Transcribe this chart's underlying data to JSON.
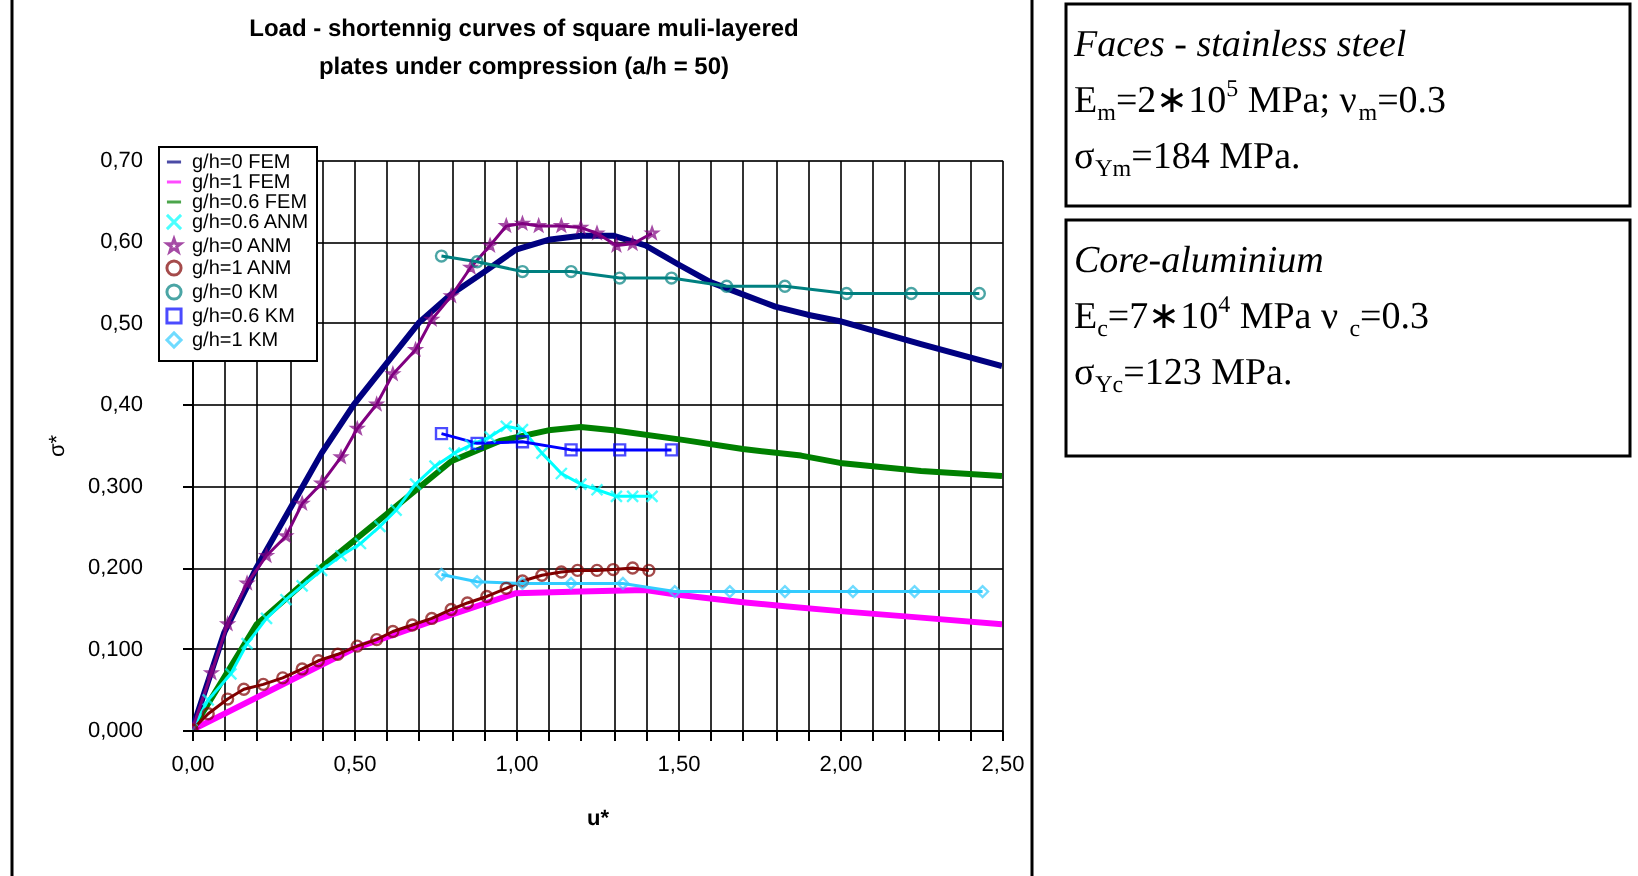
{
  "chart_data": {
    "type": "line",
    "title": "Load - shortennig curves of square muli-layered\nplates under compression (a/h = 50)",
    "xlabel": "u*",
    "ylabel": "σ*",
    "xlim": [
      0,
      2.5
    ],
    "ylim": [
      0,
      0.7
    ],
    "xticks": [
      {
        "value": 0,
        "label": "0,00"
      },
      {
        "value": 0.1,
        "label": null
      },
      {
        "value": 0.2,
        "label": null
      },
      {
        "value": 0.3,
        "label": null
      },
      {
        "value": 0.4,
        "label": null
      },
      {
        "value": 0.5,
        "label": "0,50"
      },
      {
        "value": 0.6,
        "label": null
      },
      {
        "value": 0.7,
        "label": null
      },
      {
        "value": 0.8,
        "label": null
      },
      {
        "value": 0.9,
        "label": null
      },
      {
        "value": 1.0,
        "label": "1,00"
      },
      {
        "value": 1.1,
        "label": null
      },
      {
        "value": 1.2,
        "label": null
      },
      {
        "value": 1.3,
        "label": null
      },
      {
        "value": 1.4,
        "label": null
      },
      {
        "value": 1.5,
        "label": "1,50"
      },
      {
        "value": 1.6,
        "label": null
      },
      {
        "value": 1.7,
        "label": null
      },
      {
        "value": 1.8,
        "label": null
      },
      {
        "value": 1.9,
        "label": null
      },
      {
        "value": 2.0,
        "label": "2,00"
      },
      {
        "value": 2.1,
        "label": null
      },
      {
        "value": 2.2,
        "label": null
      },
      {
        "value": 2.3,
        "label": null
      },
      {
        "value": 2.4,
        "label": null
      },
      {
        "value": 2.5,
        "label": "2,50"
      }
    ],
    "yticks": [
      {
        "value": 0,
        "label": "0,000"
      },
      {
        "value": 0.1,
        "label": "0,100"
      },
      {
        "value": 0.2,
        "label": "0,200"
      },
      {
        "value": 0.3,
        "label": "0,300"
      },
      {
        "value": 0.4,
        "label": "0,40"
      },
      {
        "value": 0.5,
        "label": "0,50"
      },
      {
        "value": 0.6,
        "label": "0,60"
      },
      {
        "value": 0.7,
        "label": "0,70"
      }
    ],
    "grid": true,
    "legend": "top left",
    "series": [
      {
        "name": "g/h=0 FEM",
        "color": "#000080",
        "marker": "none",
        "x": [
          0,
          0.1,
          0.2,
          0.3,
          0.4,
          0.5,
          0.6,
          0.7,
          0.8,
          0.9,
          1.0,
          1.1,
          1.2,
          1.3,
          1.4,
          1.5,
          1.6,
          1.7,
          1.8,
          1.9,
          2.0,
          2.25,
          2.5
        ],
        "values": [
          0,
          0.12,
          0.2,
          0.27,
          0.34,
          0.4,
          0.45,
          0.5,
          0.535,
          0.562,
          0.59,
          0.602,
          0.607,
          0.607,
          0.595,
          0.572,
          0.55,
          0.535,
          0.52,
          0.51,
          0.502,
          0.474,
          0.447
        ]
      },
      {
        "name": "g/h=1 FEM",
        "color": "#ff00ff",
        "marker": "none",
        "x": [
          0,
          0.25,
          0.5,
          0.75,
          1.0,
          1.2,
          1.4,
          1.5,
          1.7,
          1.83,
          2.0,
          2.25,
          2.5
        ],
        "values": [
          0,
          0.05,
          0.1,
          0.135,
          0.168,
          0.17,
          0.172,
          0.166,
          0.157,
          0.152,
          0.146,
          0.138,
          0.13
        ]
      },
      {
        "name": "g/h=0.6 FEM",
        "color": "#008000",
        "marker": "none",
        "x": [
          0,
          0.2,
          0.4,
          0.6,
          0.8,
          0.95,
          1.1,
          1.2,
          1.3,
          1.52,
          1.7,
          1.88,
          2.0,
          2.25,
          2.5
        ],
        "values": [
          0,
          0.13,
          0.2,
          0.265,
          0.33,
          0.355,
          0.368,
          0.372,
          0.368,
          0.356,
          0.345,
          0.337,
          0.328,
          0.318,
          0.312
        ]
      },
      {
        "name": "g/h=0.6 ANM",
        "color": "#00ffff",
        "marker": "cross",
        "x": [
          0,
          0.05,
          0.12,
          0.17,
          0.23,
          0.29,
          0.34,
          0.4,
          0.46,
          0.52,
          0.58,
          0.63,
          0.69,
          0.75,
          0.81,
          0.86,
          0.92,
          0.97,
          1.02,
          1.08,
          1.14,
          1.2,
          1.25,
          1.31,
          1.36,
          1.42
        ],
        "values": [
          0,
          0.037,
          0.069,
          0.106,
          0.137,
          0.16,
          0.177,
          0.196,
          0.214,
          0.229,
          0.25,
          0.27,
          0.302,
          0.324,
          0.34,
          0.35,
          0.36,
          0.373,
          0.369,
          0.34,
          0.315,
          0.302,
          0.295,
          0.287,
          0.287,
          0.287
        ]
      },
      {
        "name": "g/h=0 ANM",
        "color": "#800080",
        "marker": "star",
        "x": [
          0,
          0.06,
          0.11,
          0.17,
          0.23,
          0.29,
          0.34,
          0.4,
          0.46,
          0.51,
          0.57,
          0.62,
          0.69,
          0.74,
          0.8,
          0.86,
          0.92,
          0.97,
          1.02,
          1.07,
          1.14,
          1.2,
          1.25,
          1.31,
          1.36,
          1.42
        ],
        "values": [
          0,
          0.07,
          0.13,
          0.18,
          0.214,
          0.238,
          0.278,
          0.303,
          0.335,
          0.37,
          0.4,
          0.437,
          0.467,
          0.504,
          0.533,
          0.568,
          0.595,
          0.619,
          0.622,
          0.619,
          0.619,
          0.617,
          0.61,
          0.595,
          0.597,
          0.61
        ]
      },
      {
        "name": "g/h=1 ANM",
        "color": "#800000",
        "marker": "circle",
        "x": [
          0,
          0.05,
          0.11,
          0.16,
          0.22,
          0.28,
          0.34,
          0.39,
          0.45,
          0.51,
          0.57,
          0.62,
          0.68,
          0.74,
          0.8,
          0.85,
          0.91,
          0.97,
          1.02,
          1.08,
          1.14,
          1.19,
          1.25,
          1.3,
          1.36,
          1.41
        ],
        "values": [
          0,
          0.02,
          0.038,
          0.05,
          0.056,
          0.064,
          0.075,
          0.085,
          0.093,
          0.103,
          0.111,
          0.121,
          0.129,
          0.137,
          0.148,
          0.156,
          0.164,
          0.174,
          0.183,
          0.19,
          0.194,
          0.196,
          0.196,
          0.197,
          0.199,
          0.196
        ]
      },
      {
        "name": "g/h=0 KM",
        "color": "#008080",
        "marker": "circle",
        "x": [
          0.77,
          0.88,
          1.02,
          1.17,
          1.32,
          1.48,
          1.65,
          1.83,
          2.02,
          2.22,
          2.43
        ],
        "values": [
          0.582,
          0.575,
          0.563,
          0.563,
          0.555,
          0.555,
          0.545,
          0.545,
          0.536,
          0.536,
          0.536
        ]
      },
      {
        "name": "g/h=0.6 KM",
        "color": "#0000ff",
        "marker": "square",
        "x": [
          0.77,
          0.88,
          1.02,
          1.17,
          1.32,
          1.48
        ],
        "values": [
          0.364,
          0.352,
          0.354,
          0.344,
          0.344,
          0.344
        ]
      },
      {
        "name": "g/h=1 KM",
        "color": "#33ccff",
        "marker": "diamond",
        "x": [
          0.77,
          0.88,
          1.02,
          1.17,
          1.33,
          1.49,
          1.66,
          1.83,
          2.04,
          2.23,
          2.44
        ],
        "values": [
          0.191,
          0.182,
          0.18,
          0.18,
          0.18,
          0.17,
          0.17,
          0.17,
          0.17,
          0.17,
          0.17
        ]
      }
    ],
    "annotations": [
      "Faces - stainless steel",
      "E$_{m}$=2∗10$^{5}$ MPa; ν$_{m}$=0.3",
      "σ$_{Ym}$=184 MPa.",
      "Core-aluminium",
      "E$_{c}$=7∗10$^{4}$ MPa  ν$_{c}$=0.3",
      "σ$_{Yc}$=123 MPa."
    ]
  }
}
